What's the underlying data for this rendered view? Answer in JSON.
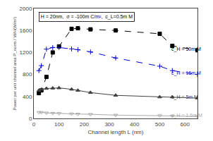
{
  "chart_data": {
    "type": "line",
    "xlabel": "Channel length L (nm)",
    "ylabel": "Power per unit channel area P_norm / W/H(W/m²)",
    "xlim": [
      0,
      650
    ],
    "ylim": [
      0,
      2000
    ],
    "xticks": [
      0,
      100,
      200,
      300,
      400,
      500,
      600
    ],
    "yticks": [
      0,
      400,
      800,
      1200,
      1600,
      2000
    ],
    "grid": false,
    "series": [
      {
        "color": "#000000",
        "marker": "square",
        "line_style": "dash",
        "x": [
          20,
          30,
          50,
          75,
          100,
          150,
          175,
          225,
          325,
          500,
          550,
          650
        ],
        "values": [
          460,
          510,
          755,
          1200,
          1310,
          1630,
          1640,
          1620,
          1600,
          1540,
          1320,
          1240
        ]
      },
      {
        "color": "#0000cc",
        "marker": "cross-thin",
        "line_style": "dash",
        "x": [
          20,
          30,
          50,
          75,
          100,
          150,
          175,
          225,
          325,
          500,
          550,
          650
        ],
        "values": [
          870,
          960,
          1260,
          1290,
          1290,
          1265,
          1250,
          1210,
          1100,
          950,
          870,
          800
        ]
      },
      {
        "color": "#404040",
        "marker": "triangle-up",
        "line_style": "solid",
        "x": [
          20,
          30,
          50,
          75,
          100,
          150,
          175,
          225,
          325,
          500,
          550,
          650
        ],
        "values": [
          510,
          530,
          545,
          550,
          555,
          530,
          510,
          470,
          420,
          390,
          390,
          370
        ]
      },
      {
        "color": "#aaaaaa",
        "marker": "triangle-down-open",
        "line_style": "solid",
        "x": [
          20,
          30,
          50,
          75,
          100,
          150,
          175,
          225,
          325,
          500,
          550,
          650
        ],
        "values": [
          110,
          110,
          100,
          95,
          90,
          85,
          80,
          75,
          60,
          50,
          45,
          35
        ]
      }
    ],
    "annotations": [
      {
        "text": "c_H = 50m M",
        "x": 540,
        "y": 1255,
        "color": "#000000"
      },
      {
        "text": "c_H = 16m M",
        "x": 540,
        "y": 820,
        "color": "#0000cc"
      },
      {
        "text": "c_H = 5m M",
        "x": 540,
        "y": 385,
        "color": "#404040"
      },
      {
        "text": "c_H = 1.6m M",
        "x": 540,
        "y": 48,
        "color": "#aaaaaa"
      }
    ],
    "box_text": "H = 20nm,  σ = -100m C/m²,  c_L=0.5m M"
  }
}
